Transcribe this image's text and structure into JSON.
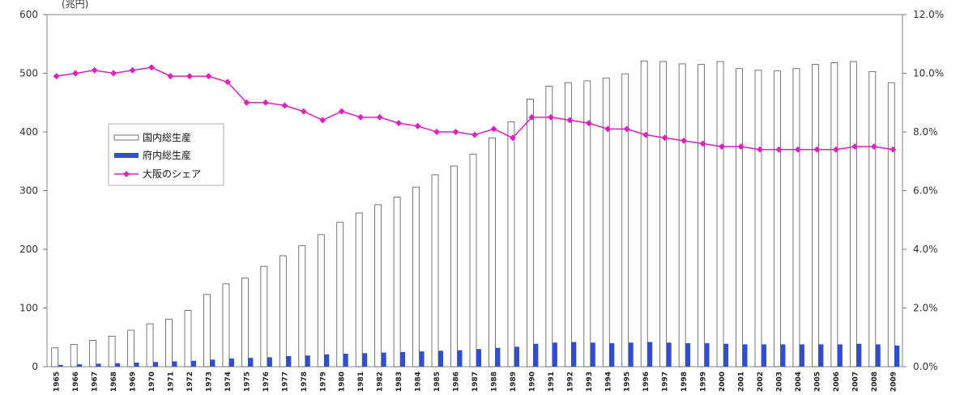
{
  "chart_data": {
    "type": "bar",
    "y_unit_label": "(兆円)",
    "categories": [
      "1965",
      "1966",
      "1967",
      "1968",
      "1969",
      "1970",
      "1971",
      "1972",
      "1973",
      "1974",
      "1975",
      "1976",
      "1977",
      "1978",
      "1979",
      "1980",
      "1981",
      "1982",
      "1983",
      "1984",
      "1985",
      "1986",
      "1987",
      "1988",
      "1989",
      "1990",
      "1991",
      "1992",
      "1993",
      "1994",
      "1995",
      "1996",
      "1997",
      "1998",
      "1999",
      "2000",
      "2001",
      "2002",
      "2003",
      "2004",
      "2005",
      "2006",
      "2007",
      "2008",
      "2009"
    ],
    "series": [
      {
        "name": "国内総生産",
        "type": "bar",
        "axis": "left",
        "color": "#ffffff",
        "values": [
          32,
          38,
          45,
          52,
          62,
          73,
          81,
          96,
          123,
          141,
          151,
          171,
          189,
          206,
          225,
          246,
          262,
          276,
          289,
          306,
          327,
          342,
          362,
          390,
          417,
          456,
          478,
          484,
          487,
          492,
          499,
          521,
          520,
          516,
          515,
          520,
          508,
          505,
          504,
          508,
          515,
          518,
          520,
          503,
          484
        ]
      },
      {
        "name": "府内総生産",
        "type": "bar",
        "axis": "left",
        "color": "#2f4fd0",
        "values": [
          3,
          4,
          5,
          6,
          7,
          8,
          9,
          10,
          12,
          14,
          15,
          16,
          18,
          19,
          21,
          22,
          23,
          24,
          25,
          26,
          27,
          28,
          30,
          32,
          34,
          39,
          41,
          42,
          41,
          40,
          41,
          42,
          41,
          40,
          40,
          39,
          38,
          38,
          38,
          38,
          38,
          38,
          39,
          38,
          36
        ]
      },
      {
        "name": "大阪のシェア",
        "type": "line",
        "axis": "right",
        "color": "#e020c0",
        "values": [
          9.9,
          10.0,
          10.1,
          10.0,
          10.1,
          10.2,
          9.9,
          9.9,
          9.9,
          9.7,
          9.0,
          9.0,
          8.9,
          8.7,
          8.4,
          8.7,
          8.5,
          8.5,
          8.3,
          8.2,
          8.0,
          8.0,
          7.9,
          8.1,
          7.8,
          8.5,
          8.5,
          8.4,
          8.3,
          8.1,
          8.1,
          7.9,
          7.8,
          7.7,
          7.6,
          7.5,
          7.5,
          7.4,
          7.4,
          7.4,
          7.4,
          7.4,
          7.5,
          7.5,
          7.4
        ]
      }
    ],
    "y_left": {
      "min": 0,
      "max": 600,
      "ticks": [
        "0",
        "100",
        "200",
        "300",
        "400",
        "500",
        "600"
      ]
    },
    "y_right": {
      "min": 0,
      "max": 12,
      "ticks": [
        "0.0%",
        "2.0%",
        "4.0%",
        "6.0%",
        "8.0%",
        "10.0%",
        "12.0%"
      ]
    },
    "grid": false,
    "legend_position": "left-middle"
  }
}
